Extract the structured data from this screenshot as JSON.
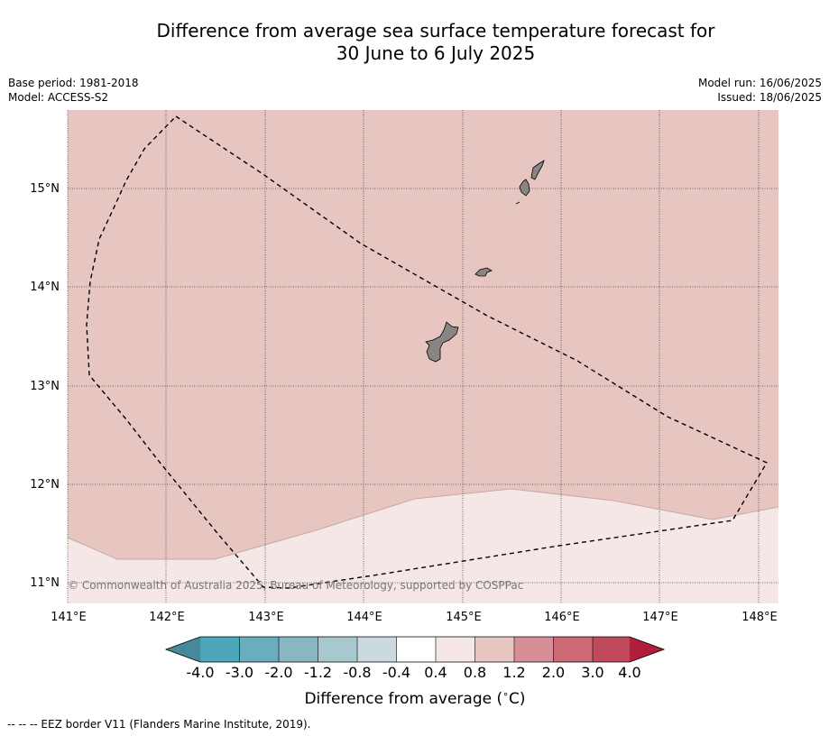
{
  "title_line1": "Difference from average sea surface temperature forecast for",
  "title_line2": "30 June to 6 July 2025",
  "base_period": "Base period: 1981-2018",
  "model": "Model: ACCESS-S2",
  "model_run": "Model run: 16/06/2025",
  "issued": "Issued: 18/06/2025",
  "copyright": "© Commonwealth of Australia 2025, Bureau of Meteorology, supported by COSPPac",
  "footnote": "--  --  -- EEZ border V11 (Flanders Marine Institute, 2019).",
  "map": {
    "lon_ticks": [
      "141°E",
      "142°E",
      "143°E",
      "144°E",
      "145°E",
      "146°E",
      "147°E",
      "148°E"
    ],
    "lat_ticks": [
      "15°N",
      "14°N",
      "13°N",
      "12°N",
      "11°N"
    ],
    "colors": {
      "anomaly_0_8_to_1_2": "#e7c6c2",
      "anomaly_0_4_to_0_8": "#f4e7e6",
      "land": "#8a8584",
      "grid": "#444444"
    }
  },
  "colorbar": {
    "label": "Difference from average (",
    "label_unit": "°C)",
    "tick_labels": [
      "-4.0",
      "-3.0",
      "-2.0",
      "-1.2",
      "-0.8",
      "-0.4",
      "0.4",
      "0.8",
      "1.2",
      "2.0",
      "3.0",
      "4.0"
    ],
    "colors": [
      "#47889a",
      "#4aa6b8",
      "#6aadbe",
      "#8ab6c3",
      "#a7c8cc",
      "#cad9dc",
      "#ffffff",
      "#f5e7e6",
      "#e7c6c2",
      "#d88e98",
      "#cd6a76",
      "#c04a5c",
      "#b01e3c"
    ]
  }
}
